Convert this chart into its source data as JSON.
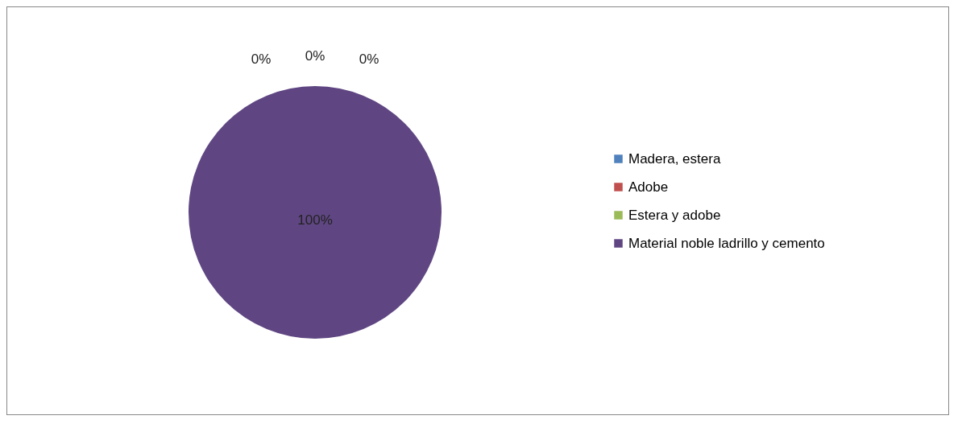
{
  "chart_data": {
    "type": "pie",
    "categories": [
      "Madera, estera",
      "Adobe",
      "Estera y adobe",
      "Material noble ladrillo y cemento"
    ],
    "values": [
      0,
      0,
      0,
      100
    ],
    "colors": [
      "#4f81bd",
      "#c0504d",
      "#9bbb59",
      "#5f4682"
    ],
    "value_labels": [
      "0%",
      "0%",
      "0%",
      "100%"
    ],
    "legend": "right"
  }
}
